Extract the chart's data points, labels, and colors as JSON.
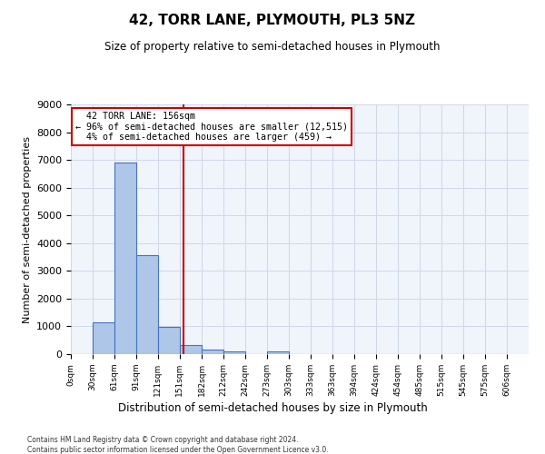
{
  "title": "42, TORR LANE, PLYMOUTH, PL3 5NZ",
  "subtitle": "Size of property relative to semi-detached houses in Plymouth",
  "xlabel": "Distribution of semi-detached houses by size in Plymouth",
  "ylabel": "Number of semi-detached properties",
  "property_size": 156,
  "property_label": "42 TORR LANE: 156sqm",
  "pct_smaller": 96,
  "n_smaller": 12515,
  "pct_larger": 4,
  "n_larger": 459,
  "bar_left_edges": [
    0,
    30,
    61,
    91,
    121,
    151,
    182,
    212,
    242,
    273,
    303,
    333,
    363,
    394,
    424,
    454,
    485,
    515,
    545,
    575
  ],
  "bar_widths": [
    30,
    31,
    30,
    30,
    30,
    31,
    30,
    30,
    31,
    30,
    30,
    30,
    31,
    30,
    30,
    31,
    30,
    30,
    30,
    31
  ],
  "bar_heights": [
    0,
    1150,
    6900,
    3560,
    980,
    330,
    160,
    110,
    0,
    85,
    0,
    0,
    0,
    0,
    0,
    0,
    0,
    0,
    0,
    0
  ],
  "bar_color": "#aec6e8",
  "bar_edge_color": "#4472c4",
  "vline_x": 156,
  "vline_color": "#cc0000",
  "annotation_box_color": "#cc0000",
  "ylim": [
    0,
    9000
  ],
  "yticks": [
    0,
    1000,
    2000,
    3000,
    4000,
    5000,
    6000,
    7000,
    8000,
    9000
  ],
  "xtick_labels": [
    "0sqm",
    "30sqm",
    "61sqm",
    "91sqm",
    "121sqm",
    "151sqm",
    "182sqm",
    "212sqm",
    "242sqm",
    "273sqm",
    "303sqm",
    "333sqm",
    "363sqm",
    "394sqm",
    "424sqm",
    "454sqm",
    "485sqm",
    "515sqm",
    "545sqm",
    "575sqm",
    "606sqm"
  ],
  "xtick_positions": [
    0,
    30,
    61,
    91,
    121,
    151,
    182,
    212,
    242,
    273,
    303,
    333,
    363,
    394,
    424,
    454,
    485,
    515,
    545,
    575,
    606
  ],
  "grid_color": "#d0d8e8",
  "background_color": "#f0f4fb",
  "footnote1": "Contains HM Land Registry data © Crown copyright and database right 2024.",
  "footnote2": "Contains public sector information licensed under the Open Government Licence v3.0."
}
